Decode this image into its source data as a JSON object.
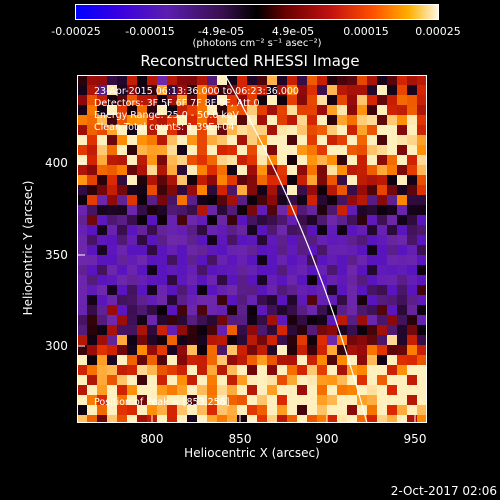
{
  "colorbar": {
    "ticks": [
      "-0.00025",
      "-0.00015",
      "-4.9e-05",
      "4.9e-05",
      "0.00015",
      "0.00025"
    ],
    "units": "(photons cm⁻² s⁻¹ asec⁻²)"
  },
  "chart_data": {
    "type": "heatmap",
    "title": "Reconstructed RHESSI Image",
    "xlabel": "Heliocentric X (arcsec)",
    "ylabel": "Heliocentric Y (arcsec)",
    "xlim": [
      760,
      950
    ],
    "ylim": [
      255,
      445
    ],
    "xticks": [
      "800",
      "850",
      "900",
      "950"
    ],
    "yticks": [
      "300",
      "350",
      "400"
    ],
    "annotations": [
      "23-Apr-2015 06:13:36.000 to 06:23:36.000",
      "Detectors: 3F 5F 6F 7F 8F 9F, Att 0",
      "Energy Range: 25.0 - 50.0 keV",
      "Clean     Total counts: 1.39E+04"
    ],
    "position_label": "Position of Peak = [853,256]"
  },
  "date": "2-Oct-2017 02:06"
}
